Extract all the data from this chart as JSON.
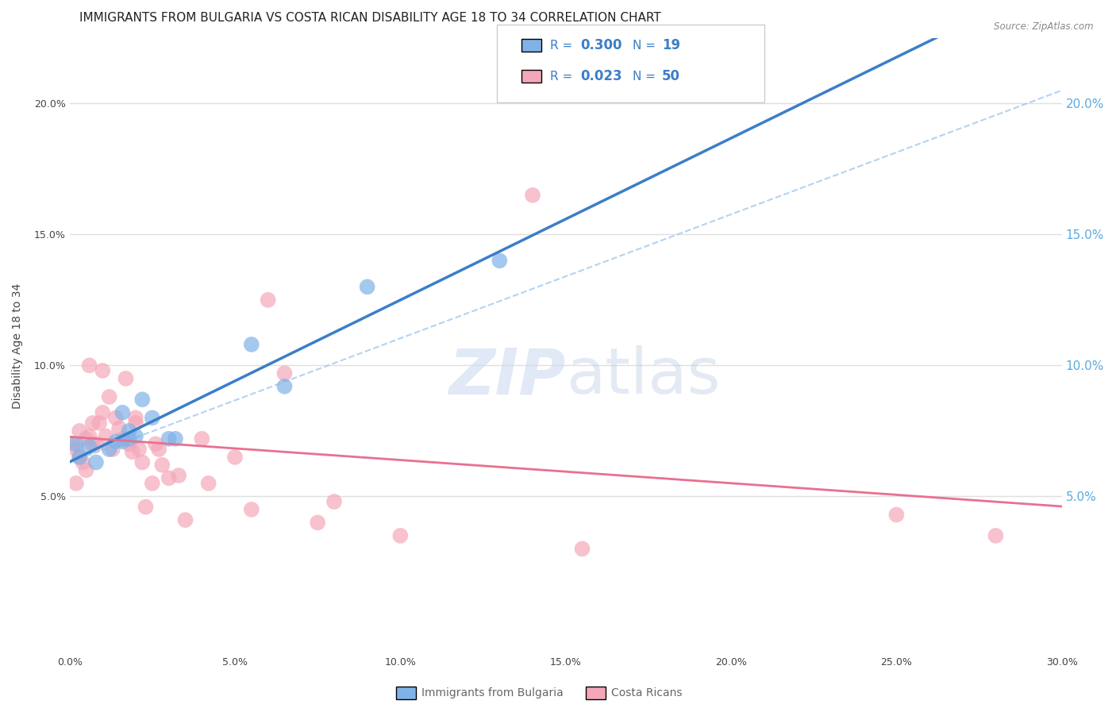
{
  "title": "IMMIGRANTS FROM BULGARIA VS COSTA RICAN DISABILITY AGE 18 TO 34 CORRELATION CHART",
  "source": "Source: ZipAtlas.com",
  "xlabel": "",
  "ylabel": "Disability Age 18 to 34",
  "xlim": [
    0.0,
    0.3
  ],
  "ylim": [
    -0.01,
    0.225
  ],
  "xticks": [
    0.0,
    0.05,
    0.1,
    0.15,
    0.2,
    0.25,
    0.3
  ],
  "yticks_left": [
    0.05,
    0.1,
    0.15,
    0.2
  ],
  "yticks_right": [
    0.05,
    0.1,
    0.15,
    0.2
  ],
  "legend_R_bulgaria": "R = 0.300",
  "legend_N_bulgaria": "N =  19",
  "legend_R_costa": "R = 0.023",
  "legend_N_costa": "N = 50",
  "color_bulgaria": "#7FB3E8",
  "color_costa": "#F4A7B9",
  "color_trend_bulgaria": "#3B7EC8",
  "color_trend_costa": "#E87090",
  "color_trend_dashed": "#A0C8F0",
  "bulgaria_x": [
    0.002,
    0.003,
    0.006,
    0.008,
    0.012,
    0.014,
    0.016,
    0.016,
    0.018,
    0.018,
    0.02,
    0.022,
    0.025,
    0.03,
    0.032,
    0.055,
    0.065,
    0.09,
    0.13
  ],
  "bulgaria_y": [
    0.07,
    0.065,
    0.069,
    0.063,
    0.068,
    0.071,
    0.071,
    0.082,
    0.075,
    0.072,
    0.073,
    0.087,
    0.08,
    0.072,
    0.072,
    0.108,
    0.092,
    0.13,
    0.14
  ],
  "costa_x": [
    0.001,
    0.002,
    0.002,
    0.003,
    0.003,
    0.004,
    0.005,
    0.005,
    0.006,
    0.006,
    0.007,
    0.007,
    0.008,
    0.009,
    0.01,
    0.01,
    0.011,
    0.012,
    0.013,
    0.014,
    0.015,
    0.016,
    0.017,
    0.018,
    0.019,
    0.02,
    0.02,
    0.021,
    0.022,
    0.023,
    0.025,
    0.026,
    0.027,
    0.028,
    0.03,
    0.033,
    0.035,
    0.04,
    0.042,
    0.05,
    0.055,
    0.06,
    0.065,
    0.075,
    0.08,
    0.1,
    0.14,
    0.155,
    0.25,
    0.28
  ],
  "costa_y": [
    0.07,
    0.068,
    0.055,
    0.075,
    0.065,
    0.063,
    0.072,
    0.06,
    0.1,
    0.073,
    0.07,
    0.078,
    0.07,
    0.078,
    0.098,
    0.082,
    0.073,
    0.088,
    0.068,
    0.08,
    0.076,
    0.072,
    0.095,
    0.07,
    0.067,
    0.08,
    0.078,
    0.068,
    0.063,
    0.046,
    0.055,
    0.07,
    0.068,
    0.062,
    0.057,
    0.058,
    0.041,
    0.072,
    0.055,
    0.065,
    0.045,
    0.125,
    0.097,
    0.04,
    0.048,
    0.035,
    0.165,
    0.03,
    0.043,
    0.035
  ],
  "background_color": "#FFFFFF",
  "grid_color": "#E0E0E0",
  "watermark_zip": "ZIP",
  "watermark_atlas": "atlas",
  "title_fontsize": 11,
  "axis_label_fontsize": 10,
  "tick_fontsize": 9
}
